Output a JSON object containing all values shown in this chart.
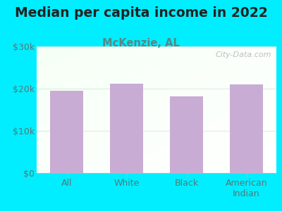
{
  "title": "Median per capita income in 2022",
  "subtitle": "McKenzie, AL",
  "categories": [
    "All",
    "White",
    "Black",
    "American\nIndian"
  ],
  "values": [
    19500,
    21200,
    18200,
    21000
  ],
  "bar_color": "#c9acd4",
  "background_outer": "#00eeff",
  "ylim": [
    0,
    30000
  ],
  "yticks": [
    0,
    10000,
    20000,
    30000
  ],
  "ytick_labels": [
    "$0",
    "$10k",
    "$20k",
    "$30k"
  ],
  "title_fontsize": 13.5,
  "subtitle_fontsize": 10.5,
  "tick_fontsize": 9,
  "watermark": "City-Data.com",
  "title_color": "#222222",
  "subtitle_color": "#558888",
  "tick_color": "#557777",
  "grid_color": "#ddeedd",
  "bar_width": 0.55
}
